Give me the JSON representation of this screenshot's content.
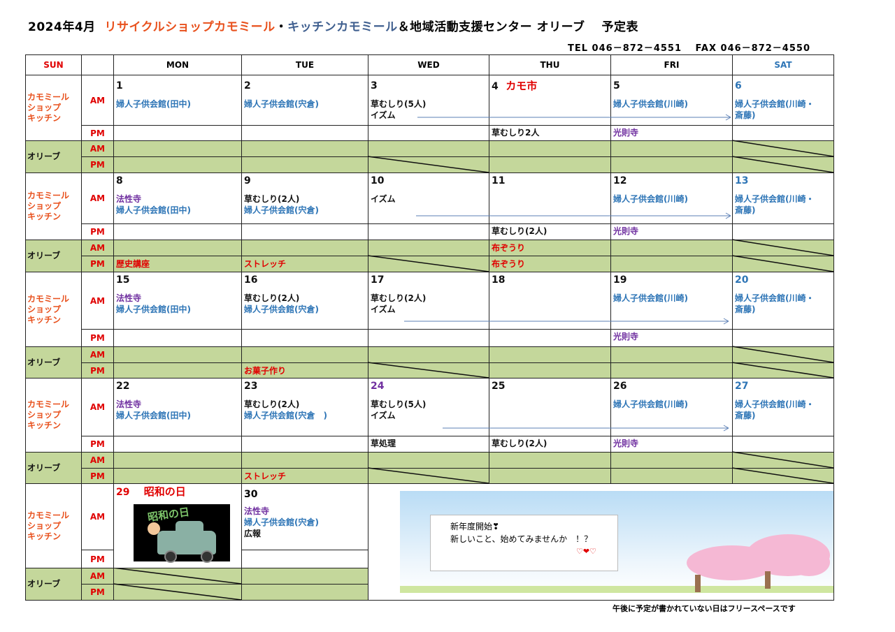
{
  "title": {
    "prefix": "2024年4月",
    "part1": "リサイクルショップカモミール",
    "dot": "・",
    "part2": "キッチンカモミール",
    "part3": "＆地域活動支援センター オリーブ　 予定表"
  },
  "contact": "TEL 046－872－4551　 FAX 046－872－4550",
  "colors": {
    "red": "#e00000",
    "orange": "#e8501c",
    "blue": "#2e75b6",
    "purple": "#7030a0",
    "olive": "#c4d79b",
    "dark": "#3f5f8f",
    "black": "#111111"
  },
  "headers": [
    {
      "label": "SUN",
      "color": "#e00000"
    },
    {
      "label": ""
    },
    {
      "label": "MON"
    },
    {
      "label": "TUE"
    },
    {
      "label": "WED"
    },
    {
      "label": "THU"
    },
    {
      "label": "FRI"
    },
    {
      "label": "SAT",
      "color": "#2e75b6"
    }
  ],
  "groups": {
    "kamomile": "カモミール\nショップ\nキッチン",
    "olive": "オリーブ",
    "am": "AM",
    "pm": "PM"
  },
  "weeks": [
    {
      "days": [
        {
          "n": "1",
          "am": [
            {
              "t": "婦人子供会館(田中)",
              "c": "blue"
            }
          ]
        },
        {
          "n": "2",
          "am": [
            {
              "t": "婦人子供会館(宍倉)",
              "c": "blue"
            }
          ]
        },
        {
          "n": "3",
          "am": [
            {
              "t": "草むしり(5人)"
            },
            {
              "t": "イズム"
            }
          ]
        },
        {
          "n": "4",
          "extra": "カモ市",
          "am": [],
          "pm": {
            "t": "草むしり2人"
          }
        },
        {
          "n": "5",
          "am": [
            {
              "t": "婦人子供会館(川崎)",
              "c": "blue"
            }
          ],
          "pm": {
            "t": "光則寺",
            "c": "purple"
          }
        },
        {
          "n": "6",
          "nc": "blue",
          "am": [
            {
              "t": "婦人子供会館(川崎・",
              "c": "blue"
            },
            {
              "t": "斎藤)",
              "c": "blue"
            }
          ]
        }
      ],
      "olive_am": {},
      "olive_pm": {},
      "closed_am": [
        5
      ],
      "closed_pm": [
        2,
        5
      ],
      "arrow": [
        597,
        1045
      ]
    },
    {
      "days": [
        {
          "n": "8",
          "am": [
            {
              "t": "法性寺",
              "c": "purple"
            },
            {
              "t": "婦人子供会館(田中)",
              "c": "blue"
            }
          ]
        },
        {
          "n": "9",
          "am": [
            {
              "t": "草むしり(2人)"
            },
            {
              "t": "婦人子供会館(宍倉)",
              "c": "blue"
            }
          ]
        },
        {
          "n": "10",
          "am": [
            {
              "t": ""
            },
            {
              "t": "イズム"
            }
          ]
        },
        {
          "n": "11",
          "am": [],
          "pm": {
            "t": "草むしり(2人)"
          }
        },
        {
          "n": "12",
          "am": [
            {
              "t": "婦人子供会館(川崎)",
              "c": "blue"
            }
          ],
          "pm": {
            "t": "光則寺",
            "c": "purple"
          }
        },
        {
          "n": "13",
          "nc": "blue",
          "am": [
            {
              "t": "婦人子供会館(川崎・",
              "c": "blue"
            },
            {
              "t": "斎藤)",
              "c": "blue"
            }
          ]
        }
      ],
      "olive_am": {
        "3": "布ぞうり"
      },
      "olive_pm": {
        "0": "歴史講座",
        "1": "ストレッチ",
        "3": "布ぞうり"
      },
      "closed_am": [
        5
      ],
      "closed_pm": [
        2,
        5
      ],
      "arrow": [
        595,
        1045
      ]
    },
    {
      "days": [
        {
          "n": "15",
          "am": [
            {
              "t": "法性寺",
              "c": "purple"
            },
            {
              "t": "婦人子供会館(田中)",
              "c": "blue"
            }
          ]
        },
        {
          "n": "16",
          "am": [
            {
              "t": "草むしり(2人)"
            },
            {
              "t": "婦人子供会館(宍倉)",
              "c": "blue"
            }
          ]
        },
        {
          "n": "17",
          "am": [
            {
              "t": "草むしり(2人)"
            },
            {
              "t": "イズム"
            }
          ]
        },
        {
          "n": "18",
          "am": []
        },
        {
          "n": "19",
          "am": [
            {
              "t": "婦人子供会館(川崎)",
              "c": "blue"
            }
          ],
          "pm": {
            "t": "光則寺",
            "c": "purple"
          }
        },
        {
          "n": "20",
          "nc": "blue",
          "am": [
            {
              "t": "婦人子供会館(川崎・",
              "c": "blue"
            },
            {
              "t": "斎藤)",
              "c": "blue"
            }
          ]
        }
      ],
      "olive_am": {},
      "olive_pm": {
        "1": "お菓子作り"
      },
      "closed_am": [
        5
      ],
      "closed_pm": [
        2,
        5
      ],
      "arrow": [
        578,
        1042
      ]
    },
    {
      "days": [
        {
          "n": "22",
          "am": [
            {
              "t": "法性寺",
              "c": "purple"
            },
            {
              "t": "婦人子供会館(田中)",
              "c": "blue"
            }
          ]
        },
        {
          "n": "23",
          "am": [
            {
              "t": "草むしり(2人)"
            },
            {
              "t": "婦人子供会館(宍倉　)",
              "c": "blue"
            }
          ]
        },
        {
          "n": "24",
          "nc": "purple",
          "am": [
            {
              "t": "草むしり(5人)"
            },
            {
              "t": "イズム"
            }
          ],
          "pm": {
            "t": "草処理"
          }
        },
        {
          "n": "25",
          "am": [],
          "pm": {
            "t": "草むしり(2人)"
          }
        },
        {
          "n": "26",
          "am": [
            {
              "t": "婦人子供会館(川崎)",
              "c": "blue"
            }
          ],
          "pm": {
            "t": "光則寺",
            "c": "purple"
          }
        },
        {
          "n": "27",
          "nc": "blue",
          "am": [
            {
              "t": "婦人子供会館(川崎・",
              "c": "blue"
            },
            {
              "t": "斎藤)",
              "c": "blue"
            }
          ]
        }
      ],
      "olive_am": {},
      "olive_pm": {
        "1": "ストレッチ"
      },
      "closed_am": [
        5
      ],
      "closed_pm": [
        2,
        5
      ],
      "arrow": [
        633,
        1042
      ]
    }
  ],
  "week5": {
    "mon": {
      "n": "29",
      "holiday": "昭和の日",
      "image_text": "昭和の日"
    },
    "tue": {
      "n": "30",
      "am": [
        {
          "t": "法性寺",
          "c": "purple"
        },
        {
          "t": "婦人子供会館(宍倉)",
          "c": "blue"
        },
        {
          "t": "広報"
        }
      ]
    },
    "message": {
      "line1": "新年度開始❣",
      "line2": "新しいこと、始めてみませんか　！？",
      "hearts": "♡❤♡"
    }
  },
  "footer": "午後に予定が書かれていない日はフリースペースです"
}
